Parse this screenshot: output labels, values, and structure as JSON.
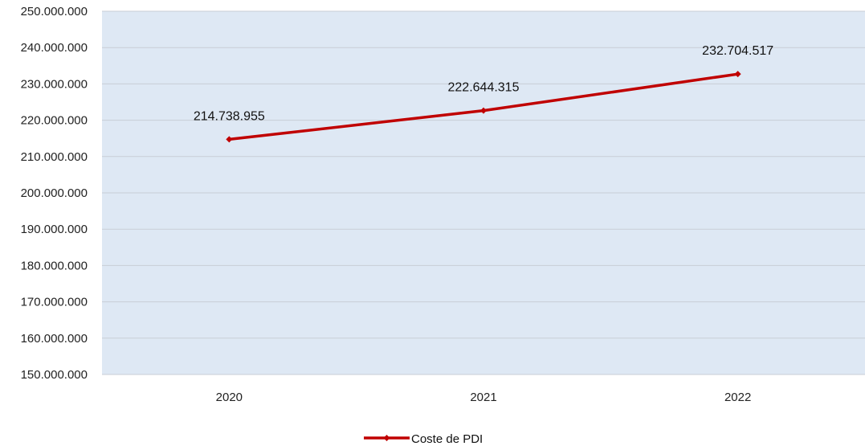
{
  "chart_data": {
    "type": "line",
    "title": "",
    "xlabel": "",
    "ylabel": "",
    "categories": [
      "2020",
      "2021",
      "2022"
    ],
    "series": [
      {
        "name": "Coste de PDI",
        "values": [
          214738955,
          222644315,
          232704517
        ],
        "value_labels": [
          "214.738.955",
          "222.644.315",
          "232.704.517"
        ],
        "color": "#C00000",
        "marker": "diamond"
      }
    ],
    "ylim": [
      150000000,
      250000000
    ],
    "y_ticks": [
      150000000,
      160000000,
      170000000,
      180000000,
      190000000,
      200000000,
      210000000,
      220000000,
      230000000,
      240000000,
      250000000
    ],
    "y_tick_labels": [
      "150.000.000",
      "160.000.000",
      "170.000.000",
      "180.000.000",
      "190.000.000",
      "200.000.000",
      "210.000.000",
      "220.000.000",
      "230.000.000",
      "240.000.000",
      "250.000.000"
    ],
    "grid": true,
    "legend_position": "bottom",
    "plot_background": "#DEE8F4",
    "grid_color": "#C8CED6"
  }
}
